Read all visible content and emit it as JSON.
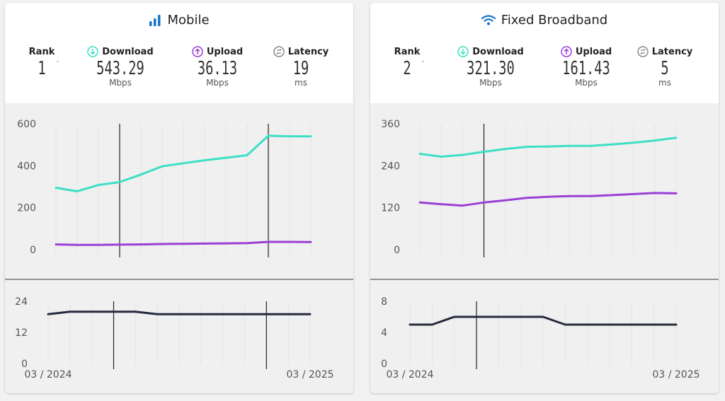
{
  "colors": {
    "download": "#3ddfc6",
    "upload": "#9b3fd6",
    "latency": "#262a3d",
    "signal": "#1a73c8",
    "gridline": "#e4e4e4",
    "marker": "#222222"
  },
  "panels": {
    "mobile": {
      "title": "Mobile",
      "icon": "signal-bars-icon",
      "rank": {
        "label": "Rank",
        "value": "1",
        "mark": "-"
      },
      "download": {
        "label": "Download",
        "value": "543.29",
        "unit": "Mbps",
        "icon": "arrow-down-circle-icon"
      },
      "upload": {
        "label": "Upload",
        "value": "36.13",
        "unit": "Mbps",
        "icon": "arrow-up-circle-icon"
      },
      "latency": {
        "label": "Latency",
        "value": "19",
        "unit": "ms",
        "icon": "latency-circle-icon"
      },
      "date_start": "03 / 2024",
      "date_end": "03 / 2025"
    },
    "fixed": {
      "title": "Fixed Broadband",
      "icon": "wifi-icon",
      "rank": {
        "label": "Rank",
        "value": "2",
        "mark": "-"
      },
      "download": {
        "label": "Download",
        "value": "321.30",
        "unit": "Mbps",
        "icon": "arrow-down-circle-icon"
      },
      "upload": {
        "label": "Upload",
        "value": "161.43",
        "unit": "Mbps",
        "icon": "arrow-up-circle-icon"
      },
      "latency": {
        "label": "Latency",
        "value": "5",
        "unit": "ms",
        "icon": "latency-circle-icon"
      },
      "date_start": "03 / 2024",
      "date_end": "03 / 2025"
    }
  },
  "chart_data": [
    {
      "type": "line",
      "panel": "mobile",
      "x": [
        "03/2024",
        "04/2024",
        "05/2024",
        "06/2024",
        "07/2024",
        "08/2024",
        "09/2024",
        "10/2024",
        "11/2024",
        "12/2024",
        "01/2025",
        "02/2025",
        "03/2025"
      ],
      "ylim": [
        0,
        600
      ],
      "yticks": [
        "0",
        "200",
        "400",
        "600"
      ],
      "grid": true,
      "markers_at": [
        3,
        10
      ],
      "series": [
        {
          "key": "download",
          "values": [
            295,
            278,
            308,
            322,
            358,
            397,
            412,
            426,
            438,
            450,
            543,
            540,
            540
          ]
        },
        {
          "key": "upload",
          "values": [
            25,
            23,
            23,
            24,
            25,
            27,
            28,
            29,
            30,
            31,
            37,
            37,
            36
          ]
        }
      ]
    },
    {
      "type": "line",
      "panel": "mobile",
      "x": [
        "03/2024",
        "04/2024",
        "05/2024",
        "06/2024",
        "07/2024",
        "08/2024",
        "09/2024",
        "10/2024",
        "11/2024",
        "12/2024",
        "01/2025",
        "02/2025",
        "03/2025"
      ],
      "ylim": [
        0,
        24
      ],
      "yticks": [
        "0",
        "12",
        "24"
      ],
      "grid": true,
      "markers_at": [
        3,
        10
      ],
      "series": [
        {
          "key": "latency",
          "values": [
            19,
            20,
            20,
            20,
            20,
            19,
            19,
            19,
            19,
            19,
            19,
            19,
            19
          ]
        }
      ]
    },
    {
      "type": "line",
      "panel": "fixed",
      "x": [
        "03/2024",
        "04/2024",
        "05/2024",
        "06/2024",
        "07/2024",
        "08/2024",
        "09/2024",
        "10/2024",
        "11/2024",
        "12/2024",
        "01/2025",
        "02/2025",
        "03/2025"
      ],
      "ylim": [
        0,
        360
      ],
      "yticks": [
        "0",
        "120",
        "240",
        "360"
      ],
      "grid": true,
      "markers_at": [
        3
      ],
      "series": [
        {
          "key": "download",
          "values": [
            274,
            266,
            271,
            280,
            288,
            294,
            295,
            297,
            297,
            301,
            306,
            312,
            320
          ]
        },
        {
          "key": "upload",
          "values": [
            135,
            130,
            126,
            135,
            141,
            148,
            151,
            153,
            153,
            156,
            159,
            162,
            161
          ]
        }
      ]
    },
    {
      "type": "line",
      "panel": "fixed",
      "x": [
        "03/2024",
        "04/2024",
        "05/2024",
        "06/2024",
        "07/2024",
        "08/2024",
        "09/2024",
        "10/2024",
        "11/2024",
        "12/2024",
        "01/2025",
        "02/2025",
        "03/2025"
      ],
      "ylim": [
        0,
        8
      ],
      "yticks": [
        "0",
        "4",
        "8"
      ],
      "grid": true,
      "markers_at": [
        3
      ],
      "series": [
        {
          "key": "latency",
          "values": [
            5,
            5,
            6,
            6,
            6,
            6,
            6,
            5,
            5,
            5,
            5,
            5,
            5
          ]
        }
      ]
    }
  ]
}
